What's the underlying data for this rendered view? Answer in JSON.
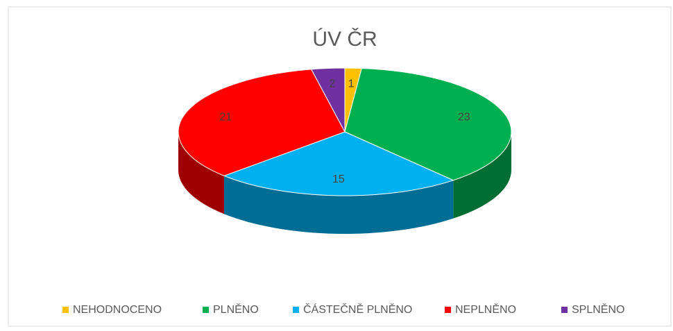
{
  "chart_data": {
    "type": "pie",
    "title": "ÚV ČR",
    "categories": [
      "NEHODNOCENO",
      "PLNĚNO",
      "ČÁSTEČNĚ PLNĚNO",
      "NEPLNĚNO",
      "SPLNĚNO"
    ],
    "values": [
      1,
      23,
      15,
      21,
      2
    ],
    "colors": [
      "#ffc000",
      "#00b050",
      "#00b0f0",
      "#ff0000",
      "#7030a0"
    ],
    "legend": "bottom"
  }
}
